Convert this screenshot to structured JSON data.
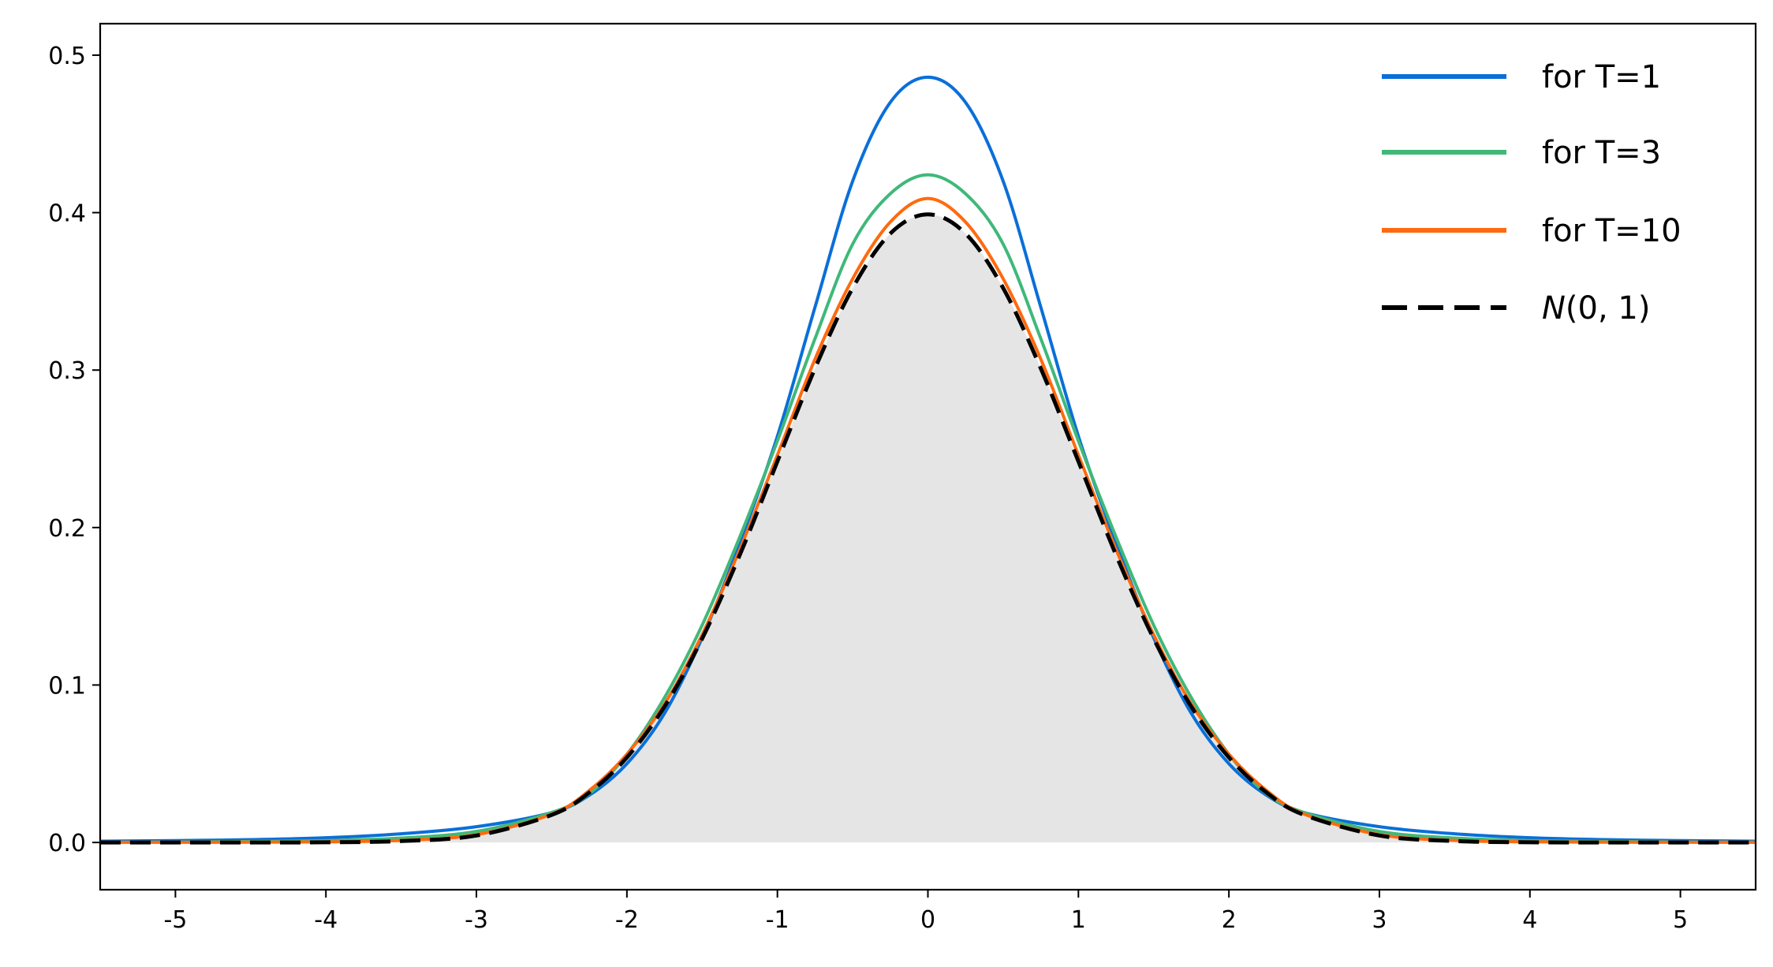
{
  "chart_data": {
    "type": "line",
    "xlim": [
      -5.5,
      5.5
    ],
    "ylim": [
      -0.03,
      0.52
    ],
    "x_ticks": [
      -5,
      -4,
      -3,
      -2,
      -1,
      0,
      1,
      2,
      3,
      4,
      5
    ],
    "x_tick_labels": [
      "-5",
      "-4",
      "-3",
      "-2",
      "-1",
      "0",
      "1",
      "2",
      "3",
      "4",
      "5"
    ],
    "y_ticks": [
      0.0,
      0.1,
      0.2,
      0.3,
      0.4,
      0.5
    ],
    "y_tick_labels": [
      "0.0",
      "0.1",
      "0.2",
      "0.3",
      "0.4",
      "0.5"
    ],
    "grid": false,
    "legend_position": "top-right",
    "x": [
      -5.5,
      -5,
      -4.5,
      -4,
      -3.5,
      -3,
      -2.5,
      -2.25,
      -2,
      -1.75,
      -1.5,
      -1.25,
      -1,
      -0.75,
      -0.5,
      -0.25,
      0,
      0.25,
      0.5,
      0.75,
      1,
      1.25,
      1.5,
      1.75,
      2,
      2.25,
      2.5,
      3,
      3.5,
      4,
      4.5,
      5,
      5.5
    ],
    "series": [
      {
        "name": "for T=1",
        "color": "#0a6fd8",
        "style": "solid",
        "values": [
          0.0008,
          0.0012,
          0.0018,
          0.003,
          0.0055,
          0.01,
          0.019,
          0.03,
          0.05,
          0.082,
          0.13,
          0.19,
          0.258,
          0.34,
          0.42,
          0.47,
          0.486,
          0.47,
          0.42,
          0.34,
          0.258,
          0.19,
          0.13,
          0.082,
          0.05,
          0.03,
          0.019,
          0.01,
          0.0055,
          0.003,
          0.0018,
          0.0012,
          0.0008
        ]
      },
      {
        "name": "for T=3",
        "color": "#40b87a",
        "style": "solid",
        "values": [
          0.0002,
          0.0003,
          0.0006,
          0.0012,
          0.0028,
          0.007,
          0.019,
          0.031,
          0.056,
          0.092,
          0.138,
          0.194,
          0.255,
          0.32,
          0.38,
          0.412,
          0.424,
          0.412,
          0.38,
          0.32,
          0.255,
          0.194,
          0.138,
          0.092,
          0.056,
          0.031,
          0.019,
          0.007,
          0.0028,
          0.0012,
          0.0006,
          0.0003,
          0.0002
        ]
      },
      {
        "name": "for T=10",
        "color": "#ff6a0e",
        "style": "solid",
        "values": [
          0.0001,
          0.0001,
          0.0002,
          0.0004,
          0.0013,
          0.005,
          0.018,
          0.033,
          0.056,
          0.088,
          0.132,
          0.186,
          0.246,
          0.307,
          0.358,
          0.394,
          0.409,
          0.394,
          0.358,
          0.307,
          0.246,
          0.186,
          0.132,
          0.088,
          0.056,
          0.033,
          0.018,
          0.005,
          0.0013,
          0.0004,
          0.0002,
          0.0001,
          0.0001
        ]
      },
      {
        "name": "N(0,1)",
        "color": "#000000",
        "style": "dashed",
        "values": [
          0.0,
          0.0,
          0.0,
          0.0001,
          0.0009,
          0.0044,
          0.0175,
          0.0317,
          0.054,
          0.0863,
          0.1295,
          0.1826,
          0.242,
          0.3011,
          0.3521,
          0.3867,
          0.3989,
          0.3867,
          0.3521,
          0.3011,
          0.242,
          0.1826,
          0.1295,
          0.0863,
          0.054,
          0.0317,
          0.0175,
          0.0044,
          0.0009,
          0.0001,
          0.0,
          0.0,
          0.0
        ]
      }
    ],
    "shaded_area": {
      "follows": "N(0,1)",
      "color": "#e5e5e5"
    }
  },
  "legend": {
    "items": [
      {
        "label": "for T=1",
        "color": "#0a6fd8",
        "dashed": false
      },
      {
        "label": "for T=3",
        "color": "#40b87a",
        "dashed": false
      },
      {
        "label": "for T=10",
        "color": "#ff6a0e",
        "dashed": false
      },
      {
        "label_prefix": "N",
        "label_suffix": "(0, 1)",
        "color": "#000000",
        "dashed": true
      }
    ]
  }
}
